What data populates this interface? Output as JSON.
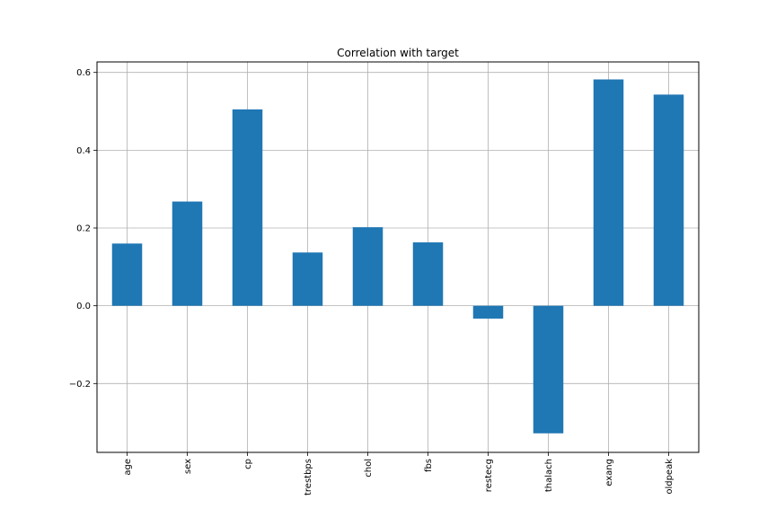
{
  "chart_data": {
    "type": "bar",
    "title": "Correlation with target",
    "xlabel": "",
    "ylabel": "",
    "categories": [
      "age",
      "sex",
      "cp",
      "trestbps",
      "chol",
      "fbs",
      "restecg",
      "thalach",
      "exang",
      "oldpeak"
    ],
    "values": [
      0.16,
      0.268,
      0.505,
      0.137,
      0.202,
      0.163,
      -0.033,
      -0.328,
      0.582,
      0.543
    ],
    "ylim": [
      -0.377,
      0.627
    ],
    "yticks": [
      -0.2,
      0.0,
      0.2,
      0.4,
      0.6
    ],
    "ytick_labels": [
      "−0.2",
      "0.0",
      "0.2",
      "0.4",
      "0.6"
    ],
    "grid": true,
    "bar_color": "#1f77b4",
    "grid_color": "#b0b0b0"
  }
}
